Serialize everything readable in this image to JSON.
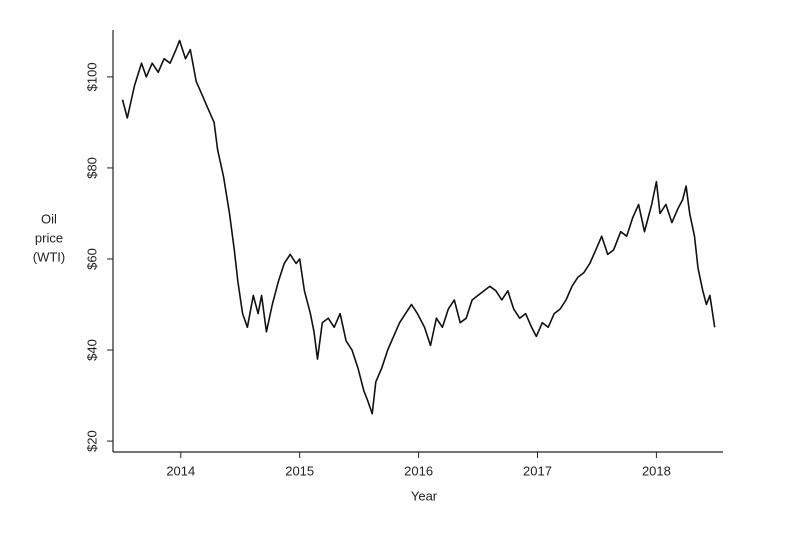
{
  "chart_data": {
    "type": "line",
    "x_label": "Year",
    "y_label": [
      "Oil",
      "price",
      "(WTI)"
    ],
    "xlim": [
      2013.43,
      2018.56
    ],
    "xticks": [
      2014,
      2015,
      2016,
      2017,
      2018
    ],
    "ylim": [
      17.6,
      110.3
    ],
    "yticks": [
      {
        "value": 20,
        "label": "$20"
      },
      {
        "value": 40,
        "label": "$40"
      },
      {
        "value": 60,
        "label": "$60"
      },
      {
        "value": 80,
        "label": "$80"
      },
      {
        "value": 100,
        "label": "$100"
      }
    ],
    "grid": false,
    "series": [
      {
        "name": "WTI",
        "color": "#111111",
        "x": [
          2013.51,
          2013.55,
          2013.61,
          2013.67,
          2013.71,
          2013.76,
          2013.81,
          2013.86,
          2013.91,
          2013.96,
          2013.99,
          2014.04,
          2014.08,
          2014.13,
          2014.18,
          2014.23,
          2014.28,
          2014.31,
          2014.36,
          2014.41,
          2014.45,
          2014.48,
          2014.52,
          2014.56,
          2014.61,
          2014.65,
          2014.68,
          2014.72,
          2014.77,
          2014.82,
          2014.87,
          2014.92,
          2014.97,
          2015.0,
          2015.04,
          2015.09,
          2015.12,
          2015.15,
          2015.19,
          2015.24,
          2015.29,
          2015.34,
          2015.39,
          2015.44,
          2015.49,
          2015.54,
          2015.57,
          2015.61,
          2015.64,
          2015.69,
          2015.74,
          2015.79,
          2015.84,
          2015.89,
          2015.94,
          2015.99,
          2016.05,
          2016.1,
          2016.15,
          2016.2,
          2016.25,
          2016.3,
          2016.35,
          2016.4,
          2016.45,
          2016.5,
          2016.55,
          2016.6,
          2016.65,
          2016.7,
          2016.75,
          2016.8,
          2016.85,
          2016.9,
          2016.95,
          2016.99,
          2017.04,
          2017.09,
          2017.14,
          2017.19,
          2017.24,
          2017.29,
          2017.34,
          2017.39,
          2017.44,
          2017.49,
          2017.54,
          2017.59,
          2017.64,
          2017.7,
          2017.75,
          2017.8,
          2017.85,
          2017.9,
          2017.93,
          2017.96,
          2018.0,
          2018.03,
          2018.08,
          2018.13,
          2018.18,
          2018.22,
          2018.25,
          2018.28,
          2018.32,
          2018.35,
          2018.39,
          2018.42,
          2018.45,
          2018.49
        ],
        "values": [
          95,
          91,
          98,
          103,
          100,
          103,
          101,
          104,
          103,
          106,
          108,
          104,
          106,
          99,
          96,
          93,
          90,
          84,
          78,
          70,
          62,
          55,
          48,
          45,
          52,
          48,
          52,
          44,
          50,
          55,
          59,
          61,
          59,
          60,
          53,
          48,
          44,
          38,
          46,
          47,
          45,
          48,
          42,
          40,
          36,
          31,
          29,
          26,
          33,
          36,
          40,
          43,
          46,
          48,
          50,
          48,
          45,
          41,
          47,
          45,
          49,
          51,
          46,
          47,
          51,
          52,
          53,
          54,
          53,
          51,
          53,
          49,
          47,
          48,
          45,
          43,
          46,
          45,
          48,
          49,
          51,
          54,
          56,
          57,
          59,
          62,
          65,
          61,
          62,
          66,
          65,
          69,
          72,
          66,
          69,
          72,
          77,
          70,
          72,
          68,
          71,
          73,
          76,
          70,
          65,
          58,
          53,
          50,
          52,
          45
        ]
      }
    ]
  }
}
